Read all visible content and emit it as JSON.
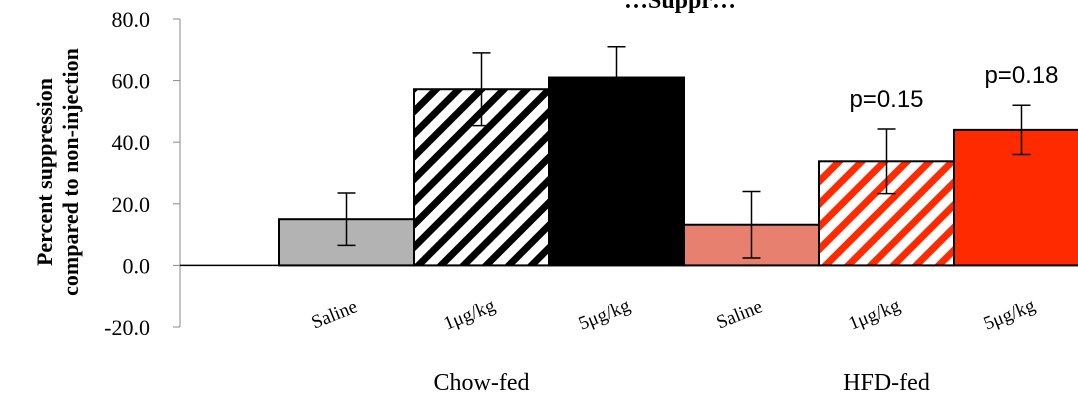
{
  "chart_data": {
    "type": "bar",
    "title": "…Suppr…",
    "ylabel_lines": [
      "Percent suppression",
      "compared to non-injection"
    ],
    "xlabel": "",
    "ylim": [
      -20,
      80
    ],
    "yticks": [
      "-20.0",
      "0.0",
      "20.0",
      "40.0",
      "60.0",
      "80.0"
    ],
    "categories": [
      "Saline",
      "1μg/kg",
      "5μg/kg",
      "Saline",
      "1μg/kg",
      "5μg/kg"
    ],
    "groups": [
      "Chow-fed",
      "HFD-fed"
    ],
    "values": [
      15.0,
      57.2,
      61.0,
      13.2,
      33.8,
      44.0
    ],
    "error": [
      8.5,
      11.8,
      10.0,
      10.8,
      10.5,
      8.0
    ],
    "fills": [
      "solid",
      "hatch",
      "solid",
      "solid",
      "hatch",
      "solid"
    ],
    "colors": [
      "#b3b3b3",
      "#000000",
      "#000000",
      "#e8806f",
      "#ff2a00",
      "#ff2a00"
    ],
    "annotations": [
      {
        "bar": 4,
        "text": "p=0.15"
      },
      {
        "bar": 5,
        "text": "p=0.18"
      }
    ]
  }
}
